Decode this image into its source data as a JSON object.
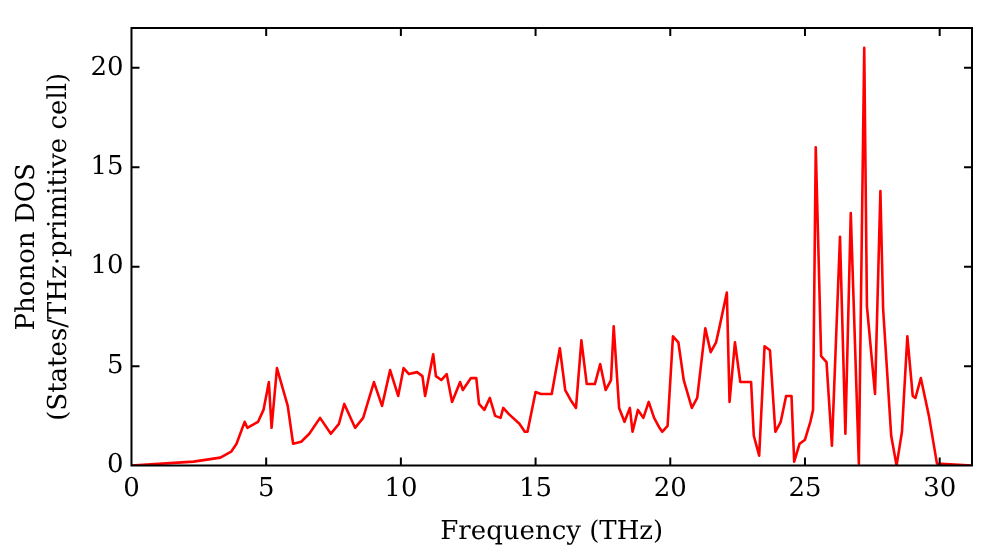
{
  "chart_data": {
    "type": "line",
    "xlabel": "Frequency (THz)",
    "ylabel": "Phonon DOS\n(States/THz·primitive cell)",
    "xlim": [
      0,
      31.2
    ],
    "ylim": [
      0,
      22
    ],
    "xticks": [
      0,
      5,
      10,
      15,
      20,
      25,
      30
    ],
    "yticks": [
      0,
      5,
      10,
      15,
      20
    ],
    "grid": false,
    "legend": false,
    "marker": "none",
    "line_style": "solid",
    "series": [
      {
        "color": "#ff0000",
        "x": [
          0,
          2.3,
          3.3,
          3.7,
          3.9,
          4.2,
          4.3,
          4.7,
          4.9,
          5.1,
          5.2,
          5.4,
          5.8,
          6.0,
          6.3,
          6.6,
          7.0,
          7.4,
          7.7,
          7.9,
          8.3,
          8.6,
          9.0,
          9.3,
          9.6,
          9.9,
          10.1,
          10.3,
          10.6,
          10.8,
          10.9,
          11.2,
          11.3,
          11.5,
          11.7,
          11.9,
          12.2,
          12.3,
          12.6,
          12.8,
          12.9,
          13.1,
          13.3,
          13.5,
          13.7,
          13.8,
          14.0,
          14.4,
          14.6,
          14.7,
          15.0,
          15.2,
          15.6,
          15.9,
          16.1,
          16.3,
          16.5,
          16.7,
          16.9,
          17.2,
          17.4,
          17.6,
          17.8,
          17.9,
          18.1,
          18.3,
          18.5,
          18.6,
          18.8,
          19.0,
          19.2,
          19.4,
          19.6,
          19.7,
          19.9,
          20.1,
          20.3,
          20.5,
          20.8,
          21.0,
          21.3,
          21.5,
          21.7,
          21.8,
          22.1,
          22.2,
          22.4,
          22.6,
          23.0,
          23.1,
          23.3,
          23.5,
          23.7,
          23.9,
          24.1,
          24.3,
          24.5,
          24.6,
          24.8,
          25.0,
          25.2,
          25.3,
          25.4,
          25.6,
          25.8,
          26.0,
          26.3,
          26.5,
          26.7,
          27.0,
          27.2,
          27.3,
          27.6,
          27.8,
          27.9,
          28.2,
          28.4,
          28.6,
          28.8,
          29.0,
          29.1,
          29.3,
          29.6,
          29.9,
          31.2
        ],
        "values": [
          0,
          0.2,
          0.4,
          0.7,
          1.1,
          2.2,
          1.9,
          2.2,
          2.8,
          4.2,
          1.9,
          4.9,
          3.0,
          1.1,
          1.2,
          1.6,
          2.4,
          1.6,
          2.1,
          3.1,
          1.9,
          2.4,
          4.2,
          3.0,
          4.8,
          3.5,
          4.9,
          4.6,
          4.7,
          4.5,
          3.5,
          5.6,
          4.5,
          4.3,
          4.6,
          3.2,
          4.2,
          3.8,
          4.4,
          4.4,
          3.1,
          2.8,
          3.4,
          2.5,
          2.4,
          2.9,
          2.6,
          2.1,
          1.7,
          1.7,
          3.7,
          3.6,
          3.6,
          5.9,
          3.8,
          3.3,
          2.9,
          6.3,
          4.1,
          4.1,
          5.1,
          3.8,
          4.3,
          7.0,
          2.9,
          2.2,
          2.9,
          1.7,
          2.8,
          2.4,
          3.2,
          2.4,
          1.9,
          1.7,
          2.0,
          6.5,
          6.2,
          4.3,
          2.9,
          3.4,
          6.9,
          5.7,
          6.2,
          6.8,
          8.7,
          3.2,
          6.2,
          4.2,
          4.2,
          1.5,
          0.5,
          6.0,
          5.8,
          1.7,
          2.2,
          3.5,
          3.5,
          0.2,
          1.1,
          1.3,
          2.2,
          2.8,
          16.0,
          5.5,
          5.2,
          1.0,
          11.5,
          1.6,
          12.7,
          0.1,
          21.0,
          8.0,
          3.6,
          13.8,
          7.9,
          1.5,
          0,
          1.7,
          6.5,
          3.5,
          3.4,
          4.4,
          2.5,
          0.1,
          0
        ]
      }
    ]
  }
}
